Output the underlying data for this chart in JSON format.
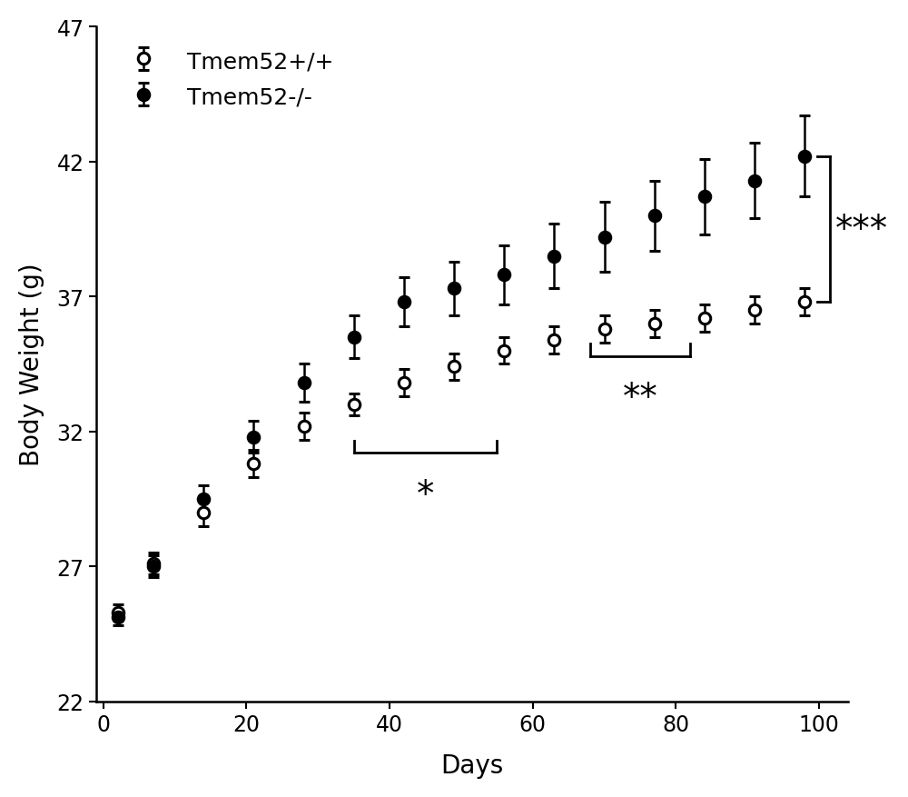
{
  "days": [
    2,
    7,
    14,
    21,
    28,
    35,
    42,
    49,
    56,
    63,
    70,
    77,
    84,
    91,
    98
  ],
  "wt_mean": [
    25.3,
    27.1,
    29.0,
    30.8,
    32.2,
    33.0,
    33.8,
    34.4,
    35.0,
    35.4,
    35.8,
    36.0,
    36.2,
    36.5,
    36.8
  ],
  "wt_err": [
    0.3,
    0.4,
    0.5,
    0.5,
    0.5,
    0.4,
    0.5,
    0.5,
    0.5,
    0.5,
    0.5,
    0.5,
    0.5,
    0.5,
    0.5
  ],
  "ko_mean": [
    25.1,
    27.0,
    29.5,
    31.8,
    33.8,
    35.5,
    36.8,
    37.3,
    37.8,
    38.5,
    39.2,
    40.0,
    40.7,
    41.3,
    42.2
  ],
  "ko_err": [
    0.3,
    0.4,
    0.5,
    0.6,
    0.7,
    0.8,
    0.9,
    1.0,
    1.1,
    1.2,
    1.3,
    1.3,
    1.4,
    1.4,
    1.5
  ],
  "xlabel": "Days",
  "ylabel": "Body Weight (g)",
  "ylim": [
    22,
    47
  ],
  "xlim": [
    -1,
    104
  ],
  "yticks": [
    22,
    27,
    32,
    37,
    42,
    47
  ],
  "xticks": [
    0,
    20,
    40,
    60,
    80,
    100
  ],
  "legend_wt": "Tmem52+/+",
  "legend_ko": "Tmem52-/-",
  "wt_color": "#000000",
  "ko_color": "#000000",
  "background_color": "#ffffff",
  "label_fontsize": 20,
  "tick_fontsize": 17,
  "legend_fontsize": 18,
  "sig_bracket1_x_start": 35,
  "sig_bracket1_x_end": 55,
  "sig_bracket1_y": 31.2,
  "sig1_label": "*",
  "sig_bracket2_x_start": 68,
  "sig_bracket2_x_end": 82,
  "sig_bracket2_y": 34.8,
  "sig2_label": "**",
  "sig3_label": "***",
  "bracket3_y_low": 36.8,
  "bracket3_y_high": 42.2,
  "bracket3_x": 101.5
}
